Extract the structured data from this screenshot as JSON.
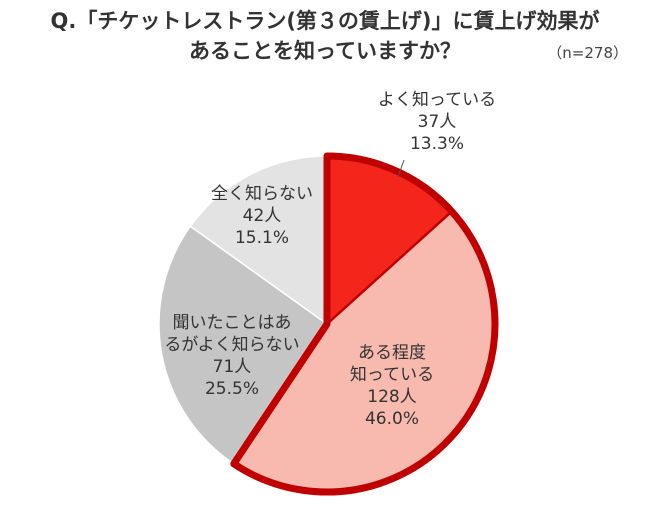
{
  "header": {
    "title_line1": "Q.「チケットレストラン(第３の賃上げ)」に賃上げ効果が",
    "title_line2": "あることを知っていますか？",
    "sample_size": "（n=278）"
  },
  "colors": {
    "accent_border": "#c00000",
    "accent_fill": "#f4261c",
    "light_red": "#f8b9ae",
    "mid_gray": "#c5c5c5",
    "light_gray": "#e3e3e3"
  },
  "chart_data": {
    "type": "pie",
    "start": "12 o'clock",
    "direction": "clockwise",
    "n": 278,
    "slices": [
      {
        "label": "よく知っている",
        "count_label": "37人",
        "pct_label": "13.3%",
        "count": 37,
        "percent": 13.3,
        "color": "#f4261c",
        "highlight": true
      },
      {
        "label": "ある程度知っている",
        "label_lines": [
          "ある程度",
          "知っている"
        ],
        "count_label": "128人",
        "pct_label": "46.0%",
        "count": 128,
        "percent": 46.0,
        "color": "#f8b9ae",
        "highlight": true
      },
      {
        "label": "聞いたことはあるがよく知らない",
        "label_lines": [
          "聞いたことはあ",
          "るがよく知らない"
        ],
        "count_label": "71人",
        "pct_label": "25.5%",
        "count": 71,
        "percent": 25.5,
        "color": "#c5c5c5",
        "highlight": false
      },
      {
        "label": "全く知らない",
        "count_label": "42人",
        "pct_label": "15.1%",
        "count": 42,
        "percent": 15.1,
        "color": "#e3e3e3",
        "highlight": false
      }
    ]
  }
}
